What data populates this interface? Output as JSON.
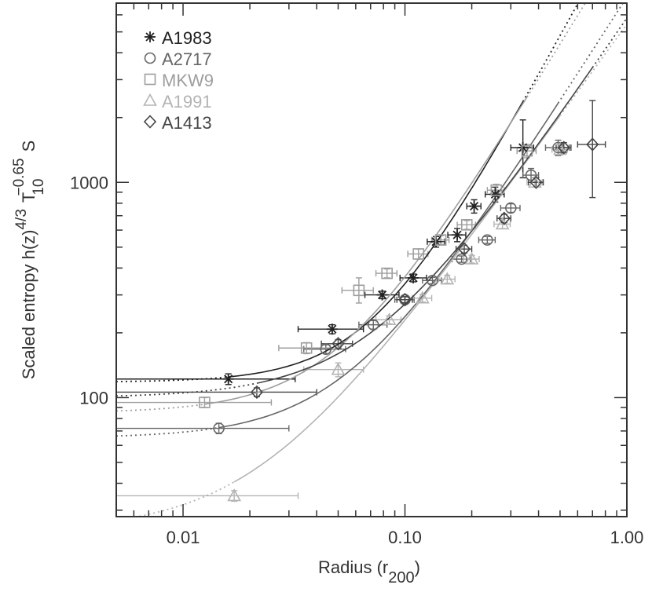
{
  "chart_data": {
    "type": "scatter",
    "xlabel": "Radius (r",
    "xlabel_sub": "200",
    "xlabel_close": ")",
    "ylabel_main": "Scaled entropy h(z)",
    "ylabel_exp1": "4/3",
    "ylabel_T": "T",
    "ylabel_T_sub": "10",
    "ylabel_exp2": "−0.65",
    "ylabel_S": "S",
    "xscale": "log",
    "yscale": "log",
    "xlim": [
      0.005,
      1.0
    ],
    "ylim": [
      28,
      6800
    ],
    "x_ticks": [
      {
        "value": 0.01,
        "label": "0.01"
      },
      {
        "value": 0.1,
        "label": "0.10"
      },
      {
        "value": 1.0,
        "label": "1.00"
      }
    ],
    "y_ticks": [
      {
        "value": 100,
        "label": "100"
      },
      {
        "value": 1000,
        "label": "1000"
      }
    ],
    "legend_position": "top-left",
    "series": [
      {
        "name": "A1983",
        "marker": "asterisk",
        "color": "#222222",
        "curve_a": 118,
        "curve_b": 17500,
        "curve_c": 1.9,
        "points": [
          {
            "x": 0.016,
            "y": 122,
            "xlo": 0.005,
            "xhi": 0.032,
            "ylo": 115,
            "yhi": 129
          },
          {
            "x": 0.047,
            "y": 208,
            "xlo": 0.033,
            "xhi": 0.065,
            "ylo": 198,
            "yhi": 218
          },
          {
            "x": 0.079,
            "y": 300,
            "xlo": 0.066,
            "xhi": 0.094,
            "ylo": 288,
            "yhi": 312
          },
          {
            "x": 0.109,
            "y": 360,
            "xlo": 0.095,
            "xhi": 0.125,
            "ylo": 345,
            "yhi": 375
          },
          {
            "x": 0.138,
            "y": 530,
            "xlo": 0.126,
            "xhi": 0.151,
            "ylo": 500,
            "yhi": 560
          },
          {
            "x": 0.172,
            "y": 570,
            "xlo": 0.156,
            "xhi": 0.188,
            "ylo": 530,
            "yhi": 610
          },
          {
            "x": 0.205,
            "y": 775,
            "xlo": 0.19,
            "xhi": 0.22,
            "ylo": 720,
            "yhi": 830
          },
          {
            "x": 0.255,
            "y": 880,
            "xlo": 0.23,
            "xhi": 0.28,
            "ylo": 810,
            "yhi": 950
          },
          {
            "x": 0.34,
            "y": 1450,
            "xlo": 0.3,
            "xhi": 0.38,
            "ylo": 1050,
            "yhi": 1950
          }
        ]
      },
      {
        "name": "A2717",
        "marker": "circle",
        "color": "#666666",
        "curve_a": 65,
        "curve_b": 7200,
        "curve_c": 1.62,
        "points": [
          {
            "x": 0.0145,
            "y": 72,
            "xlo": 0.005,
            "xhi": 0.03,
            "ylo": 68,
            "yhi": 76
          },
          {
            "x": 0.044,
            "y": 168,
            "xlo": 0.035,
            "xhi": 0.054,
            "ylo": 160,
            "yhi": 176
          },
          {
            "x": 0.072,
            "y": 218,
            "xlo": 0.062,
            "xhi": 0.083,
            "ylo": 208,
            "yhi": 228
          },
          {
            "x": 0.1,
            "y": 285,
            "xlo": 0.09,
            "xhi": 0.11,
            "ylo": 275,
            "yhi": 295
          },
          {
            "x": 0.133,
            "y": 350,
            "xlo": 0.12,
            "xhi": 0.146,
            "ylo": 338,
            "yhi": 362
          },
          {
            "x": 0.18,
            "y": 440,
            "xlo": 0.163,
            "xhi": 0.197,
            "ylo": 425,
            "yhi": 455
          },
          {
            "x": 0.235,
            "y": 540,
            "xlo": 0.215,
            "xhi": 0.255,
            "ylo": 520,
            "yhi": 560
          },
          {
            "x": 0.3,
            "y": 760,
            "xlo": 0.27,
            "xhi": 0.33,
            "ylo": 725,
            "yhi": 795
          },
          {
            "x": 0.37,
            "y": 1080,
            "xlo": 0.34,
            "xhi": 0.4,
            "ylo": 1000,
            "yhi": 1160
          },
          {
            "x": 0.49,
            "y": 1450,
            "xlo": 0.43,
            "xhi": 0.55,
            "ylo": 1330,
            "yhi": 1570
          }
        ]
      },
      {
        "name": "MKW9",
        "marker": "square",
        "color": "#9e9e9e",
        "curve_a": 85,
        "curve_b": 14000,
        "curve_c": 1.7,
        "points": [
          {
            "x": 0.0125,
            "y": 95,
            "xlo": 0.005,
            "xhi": 0.025,
            "ylo": 90,
            "yhi": 100
          },
          {
            "x": 0.036,
            "y": 170,
            "xlo": 0.027,
            "xhi": 0.046,
            "ylo": 160,
            "yhi": 180
          },
          {
            "x": 0.062,
            "y": 315,
            "xlo": 0.052,
            "xhi": 0.072,
            "ylo": 275,
            "yhi": 360
          },
          {
            "x": 0.083,
            "y": 378,
            "xlo": 0.074,
            "xhi": 0.092,
            "ylo": 360,
            "yhi": 396
          },
          {
            "x": 0.115,
            "y": 465,
            "xlo": 0.103,
            "xhi": 0.127,
            "ylo": 440,
            "yhi": 490
          },
          {
            "x": 0.145,
            "y": 540,
            "xlo": 0.132,
            "xhi": 0.158,
            "ylo": 515,
            "yhi": 565
          },
          {
            "x": 0.19,
            "y": 635,
            "xlo": 0.172,
            "xhi": 0.208,
            "ylo": 605,
            "yhi": 665
          },
          {
            "x": 0.258,
            "y": 920,
            "xlo": 0.235,
            "xhi": 0.28,
            "ylo": 860,
            "yhi": 980
          },
          {
            "x": 0.355,
            "y": 1400,
            "xlo": 0.32,
            "xhi": 0.39,
            "ylo": 1300,
            "yhi": 1500
          }
        ]
      },
      {
        "name": "A1991",
        "marker": "triangle",
        "color": "#b4b4b4",
        "curve_a": 24,
        "curve_b": 5400,
        "curve_c": 1.42,
        "points": [
          {
            "x": 0.017,
            "y": 35,
            "xlo": 0.005,
            "xhi": 0.033,
            "ylo": 33,
            "yhi": 37
          },
          {
            "x": 0.05,
            "y": 135,
            "xlo": 0.035,
            "xhi": 0.065,
            "ylo": 125,
            "yhi": 145
          },
          {
            "x": 0.085,
            "y": 230,
            "xlo": 0.074,
            "xhi": 0.096,
            "ylo": 220,
            "yhi": 240
          },
          {
            "x": 0.12,
            "y": 290,
            "xlo": 0.108,
            "xhi": 0.132,
            "ylo": 278,
            "yhi": 302
          },
          {
            "x": 0.155,
            "y": 355,
            "xlo": 0.142,
            "xhi": 0.168,
            "ylo": 340,
            "yhi": 370
          },
          {
            "x": 0.2,
            "y": 440,
            "xlo": 0.184,
            "xhi": 0.216,
            "ylo": 422,
            "yhi": 458
          },
          {
            "x": 0.275,
            "y": 640,
            "xlo": 0.252,
            "xhi": 0.298,
            "ylo": 610,
            "yhi": 670
          },
          {
            "x": 0.385,
            "y": 1000,
            "xlo": 0.355,
            "xhi": 0.415,
            "ylo": 950,
            "yhi": 1050
          },
          {
            "x": 0.5,
            "y": 1420,
            "xlo": 0.46,
            "xhi": 0.54,
            "ylo": 1340,
            "yhi": 1500
          }
        ]
      },
      {
        "name": "A1413",
        "marker": "diamond",
        "color": "#444444",
        "curve_a": 100,
        "curve_b": 5700,
        "curve_c": 1.52,
        "points": [
          {
            "x": 0.0215,
            "y": 106,
            "xlo": 0.005,
            "xhi": 0.04,
            "ylo": 101,
            "yhi": 111
          },
          {
            "x": 0.05,
            "y": 178,
            "xlo": 0.042,
            "xhi": 0.058,
            "ylo": 170,
            "yhi": 186
          },
          {
            "x": 0.1,
            "y": 285,
            "xlo": 0.092,
            "xhi": 0.108,
            "ylo": 276,
            "yhi": 294
          },
          {
            "x": 0.185,
            "y": 490,
            "xlo": 0.17,
            "xhi": 0.2,
            "ylo": 470,
            "yhi": 510
          },
          {
            "x": 0.28,
            "y": 680,
            "xlo": 0.26,
            "xhi": 0.3,
            "ylo": 650,
            "yhi": 710
          },
          {
            "x": 0.39,
            "y": 1000,
            "xlo": 0.36,
            "xhi": 0.42,
            "ylo": 950,
            "yhi": 1050
          },
          {
            "x": 0.52,
            "y": 1450,
            "xlo": 0.48,
            "xhi": 0.56,
            "ylo": 1370,
            "yhi": 1530
          },
          {
            "x": 0.7,
            "y": 1500,
            "xlo": 0.6,
            "xhi": 0.8,
            "ylo": 850,
            "yhi": 2400
          }
        ]
      }
    ]
  }
}
